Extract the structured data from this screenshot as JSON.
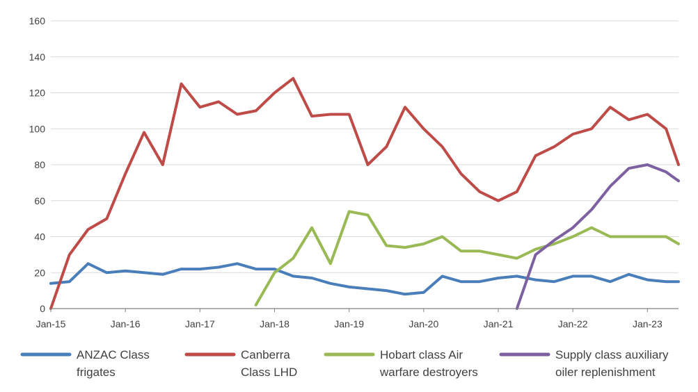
{
  "chart_data": {
    "type": "line",
    "title": "",
    "xlabel": "",
    "ylabel": "",
    "ylim": [
      0,
      160
    ],
    "yticks": [
      0,
      20,
      40,
      60,
      80,
      100,
      120,
      140,
      160
    ],
    "xlim": [
      "2015-01",
      "2023-06"
    ],
    "xticks": [
      "Jan-15",
      "Jan-16",
      "Jan-17",
      "Jan-18",
      "Jan-19",
      "Jan-20",
      "Jan-21",
      "Jan-22",
      "Jan-23"
    ],
    "grid": "horizontal",
    "legend_position": "bottom",
    "x": [
      "2015-01",
      "2015-04",
      "2015-07",
      "2015-10",
      "2016-01",
      "2016-04",
      "2016-07",
      "2016-10",
      "2017-01",
      "2017-04",
      "2017-07",
      "2017-10",
      "2018-01",
      "2018-04",
      "2018-07",
      "2018-10",
      "2019-01",
      "2019-04",
      "2019-07",
      "2019-10",
      "2020-01",
      "2020-04",
      "2020-07",
      "2020-10",
      "2021-01",
      "2021-04",
      "2021-07",
      "2021-10",
      "2022-01",
      "2022-04",
      "2022-07",
      "2022-10",
      "2023-01",
      "2023-04",
      "2023-06"
    ],
    "series": [
      {
        "name": "ANZAC Class frigates",
        "color": "#4a7ebb",
        "values": [
          14,
          15,
          25,
          20,
          21,
          20,
          19,
          22,
          22,
          23,
          25,
          22,
          22,
          18,
          17,
          14,
          12,
          11,
          10,
          8,
          9,
          18,
          15,
          15,
          17,
          18,
          16,
          15,
          18,
          18,
          15,
          19,
          16,
          15,
          15
        ]
      },
      {
        "name": "Canberra Class LHD",
        "color": "#be4b48",
        "values": [
          0,
          30,
          44,
          50,
          75,
          98,
          80,
          125,
          112,
          115,
          108,
          110,
          120,
          128,
          107,
          108,
          108,
          80,
          90,
          112,
          100,
          90,
          75,
          65,
          60,
          65,
          85,
          90,
          97,
          100,
          112,
          105,
          108,
          100,
          80
        ]
      },
      {
        "name": "Hobart class Air warfare destroyers",
        "color": "#98b954",
        "values": [
          null,
          null,
          null,
          null,
          null,
          null,
          null,
          null,
          null,
          null,
          null,
          2,
          20,
          28,
          45,
          25,
          54,
          52,
          35,
          34,
          36,
          40,
          32,
          32,
          30,
          28,
          33,
          36,
          40,
          45,
          40,
          40,
          40,
          40,
          36
        ]
      },
      {
        "name": "Supply class auxiliary oiler replenishment",
        "color": "#7d60a0",
        "values": [
          null,
          null,
          null,
          null,
          null,
          null,
          null,
          null,
          null,
          null,
          null,
          null,
          null,
          null,
          null,
          null,
          null,
          null,
          null,
          null,
          null,
          null,
          null,
          null,
          null,
          0,
          30,
          38,
          45,
          55,
          68,
          78,
          80,
          76,
          71
        ]
      }
    ]
  }
}
